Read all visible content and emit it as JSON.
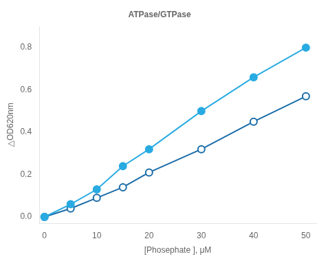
{
  "chart_data": {
    "type": "line",
    "title": "ATPase/GTPase",
    "xlabel": "[Phosephate ], μM",
    "ylabel": "△OD620nm",
    "x": [
      0,
      5,
      10,
      15,
      20,
      30,
      40,
      50
    ],
    "series": [
      {
        "color": "#29ABE2",
        "marker": "circle",
        "values": [
          0,
          0.06,
          0.13,
          0.24,
          0.32,
          0.5,
          0.66,
          0.8
        ]
      },
      {
        "color": "#1A6CA8",
        "marker": "circle_open",
        "values": [
          0,
          0.04,
          0.09,
          0.14,
          0.21,
          0.32,
          0.45,
          0.57
        ]
      }
    ],
    "xlim": [
      -1,
      52
    ],
    "ylim": [
      -0.03,
      0.9
    ],
    "xticks": [
      0,
      10,
      20,
      30,
      40,
      50
    ],
    "yticks": [
      {
        "value": 0,
        "label": "0.0"
      },
      0.2,
      0.4,
      0.6,
      0.8
    ],
    "grid": false
  }
}
